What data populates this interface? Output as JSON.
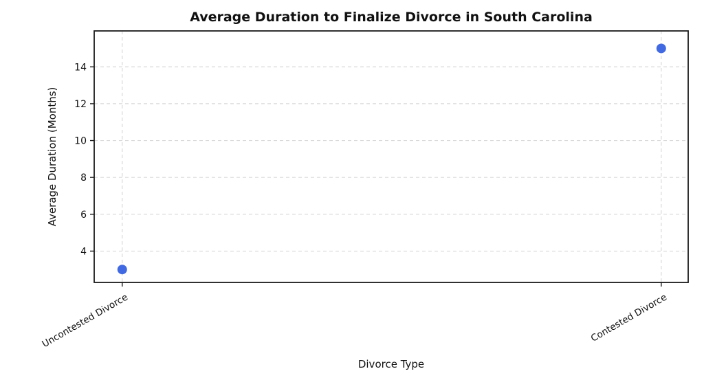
{
  "chart_data": {
    "type": "scatter",
    "title": "Average Duration to Finalize Divorce in South Carolina",
    "xlabel": "Divorce Type",
    "ylabel": "Average Duration (Months)",
    "categories": [
      "Uncontested Divorce",
      "Contested Divorce"
    ],
    "values": [
      3,
      15
    ],
    "yticks": [
      4,
      6,
      8,
      10,
      12,
      14
    ],
    "ylim": [
      2.3,
      15.95
    ],
    "xlim": [
      -0.052,
      1.05
    ],
    "grid": true,
    "grid_style": "dashed",
    "legend": "none",
    "xtick_rotation_deg": 30,
    "colors": {
      "marker": "#4169E1",
      "grid": "#d9d9d9",
      "axis": "#1a1a1a",
      "text": "#111111"
    }
  }
}
